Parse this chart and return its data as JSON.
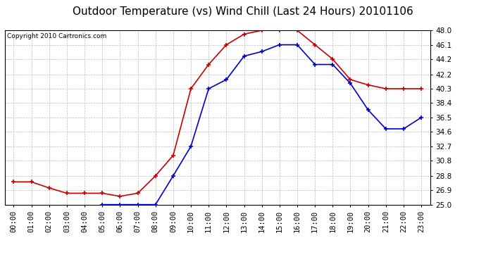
{
  "title": "Outdoor Temperature (vs) Wind Chill (Last 24 Hours) 20101106",
  "copyright": "Copyright 2010 Cartronics.com",
  "hours": [
    "00:00",
    "01:00",
    "02:00",
    "03:00",
    "04:00",
    "05:00",
    "06:00",
    "07:00",
    "08:00",
    "09:00",
    "10:00",
    "11:00",
    "12:00",
    "13:00",
    "14:00",
    "15:00",
    "16:00",
    "17:00",
    "18:00",
    "19:00",
    "20:00",
    "21:00",
    "22:00",
    "23:00"
  ],
  "temp": [
    28.0,
    28.0,
    27.2,
    26.5,
    26.5,
    26.5,
    26.1,
    26.5,
    28.8,
    31.5,
    40.3,
    43.5,
    46.1,
    47.5,
    48.0,
    48.0,
    48.0,
    46.1,
    44.2,
    41.5,
    40.8,
    40.3,
    40.3,
    40.3
  ],
  "windchill": [
    null,
    null,
    null,
    null,
    null,
    25.0,
    25.0,
    25.0,
    25.0,
    28.8,
    32.7,
    40.3,
    41.5,
    44.6,
    45.2,
    46.1,
    46.1,
    43.5,
    43.5,
    41.0,
    37.5,
    35.0,
    35.0,
    36.5
  ],
  "temp_color": "#cc0000",
  "windchill_color": "#0000cc",
  "bg_color": "#ffffff",
  "plot_bg_color": "#ffffff",
  "grid_color": "#bbbbbb",
  "ymin": 25.0,
  "ymax": 48.0,
  "yticks": [
    25.0,
    26.9,
    28.8,
    30.8,
    32.7,
    34.6,
    36.5,
    38.4,
    40.3,
    42.2,
    44.2,
    46.1,
    48.0
  ],
  "title_fontsize": 11,
  "copyright_fontsize": 6.5,
  "tick_fontsize": 7.5
}
